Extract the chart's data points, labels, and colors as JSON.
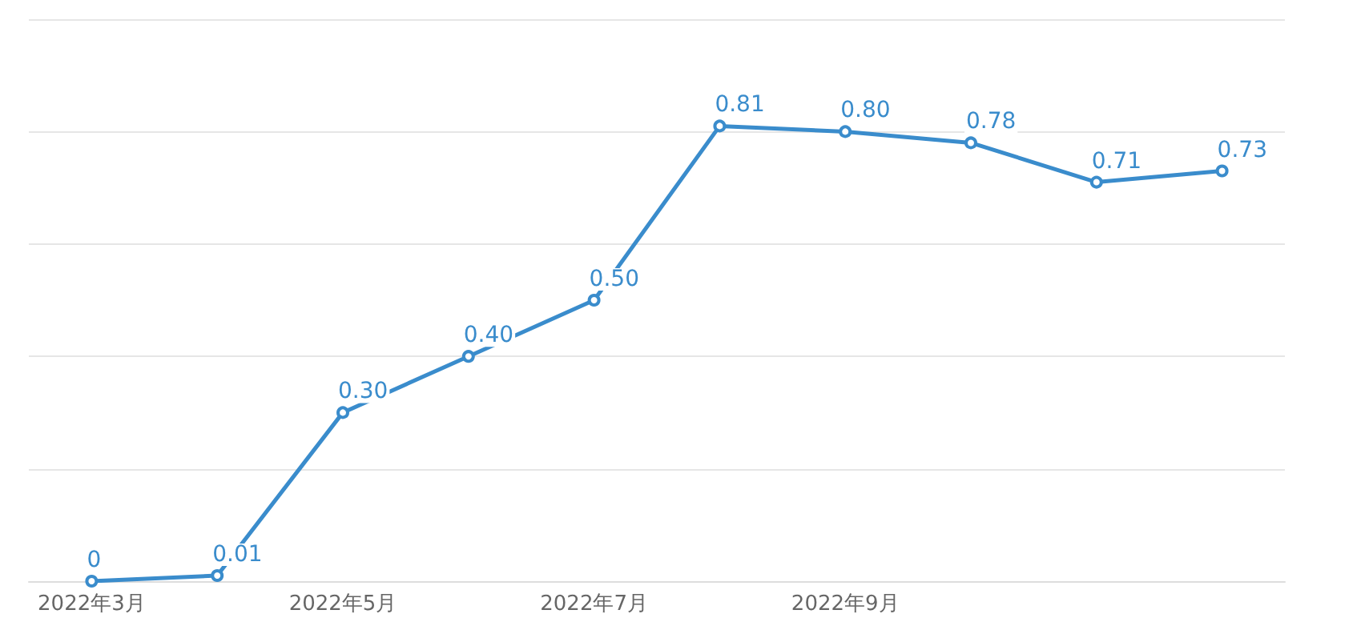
{
  "chart_data": {
    "type": "line",
    "categories": [
      "2022年3月",
      null,
      "2022年5月",
      null,
      "2022年7月",
      null,
      "2022年9月",
      null,
      null,
      null
    ],
    "series": [
      {
        "color": "#3a8ccc",
        "values": [
          0,
          0.01,
          0.3,
          0.4,
          0.5,
          0.81,
          0.8,
          0.78,
          0.71,
          0.73
        ],
        "value_labels": [
          "0",
          "0.01",
          "0.30",
          "0.40",
          "0.50",
          "0.81",
          "0.80",
          "0.78",
          "0.71",
          "0.73"
        ]
      }
    ],
    "ylim": [
      0,
      1
    ],
    "yticks": [
      {
        "value": 0,
        "label": null
      },
      {
        "value": 0.2,
        "label": null
      },
      {
        "value": 0.4,
        "label": null
      },
      {
        "value": 0.6,
        "label": null
      },
      {
        "value": 0.8,
        "label": null
      },
      {
        "value": 1,
        "label": null
      }
    ],
    "grid": "y",
    "tick_labels": "x",
    "marker": "circle",
    "line_style": "solid"
  }
}
